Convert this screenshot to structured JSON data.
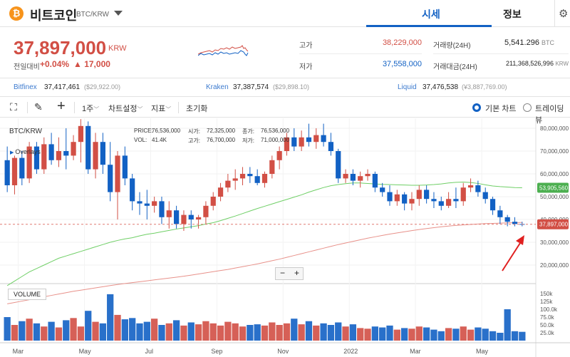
{
  "header": {
    "coin_symbol": "₿",
    "coin_name": "비트코인",
    "pair": "BTC/KRW",
    "tabs": [
      {
        "label": "시세",
        "active": true
      },
      {
        "label": "정보",
        "active": false
      }
    ],
    "settings_icon": "⚙"
  },
  "summary": {
    "price": "37,897,000",
    "unit": "KRW",
    "change_label": "전일대비",
    "change_pct": "+0.04%",
    "change_val": "▲ 17,000",
    "high_label": "고가",
    "high": "38,229,000",
    "low_label": "저가",
    "low": "37,558,000",
    "volume_label": "거래량(24H)",
    "volume": "5,541.296",
    "volume_unit": "BTC",
    "amount_label": "거래대금(24H)",
    "amount": "211,368,526,996",
    "amount_unit": "KRW"
  },
  "exchanges": [
    {
      "name": "Bitfinex",
      "price": "37,417,461",
      "usd": "($29,922.00)"
    },
    {
      "name": "Kraken",
      "price": "37,387,574",
      "usd": "($29,898.10)"
    },
    {
      "name": "Liquid",
      "price": "37,476,538",
      "usd": "(¥3,887,769.00)"
    }
  ],
  "toolbar": {
    "fullscreen_icon": "⛶",
    "draw_icon": "✎",
    "crosshair_icon": "+",
    "period": "1주",
    "chart_settings": "차트설정",
    "indicators": "지표",
    "reset": "초기화",
    "basic_chart": "기본 차트",
    "trading_view": "트레이딩뷰",
    "dropdown_icon": "﹀"
  },
  "chart": {
    "ticker": "BTC/KRW",
    "overlays": "Overlays",
    "info": {
      "price_label": "PRICE:",
      "price": "76,536,000",
      "vol_label": "VOL:",
      "vol": "41.4K",
      "open_label": "시가:",
      "open": "72,325,000",
      "high_label": "고가:",
      "high": "76,700,000",
      "close_label": "종가:",
      "close": "76,536,000",
      "low_label": "저가:",
      "low": "71,000,000"
    },
    "zoom_out": "−",
    "zoom_in": "+",
    "volume_label": "VOLUME",
    "ma_label": "53,905,560",
    "price_label": "37,897,000"
  },
  "chart_data": {
    "type": "candlestick",
    "price_axis": [
      "80,000,000",
      "70,000,000",
      "60,000,000",
      "50,000,000",
      "40,000,000",
      "30,000,000",
      "20,000,000"
    ],
    "price_ticks": [
      80000000,
      70000000,
      60000000,
      50000000,
      40000000,
      30000000,
      20000000
    ],
    "volume_axis": [
      "150k",
      "125k",
      "100.0k",
      "75.0k",
      "50.0k",
      "25.0k"
    ],
    "volume_ticks": [
      150000,
      125000,
      100000,
      75000,
      50000,
      25000
    ],
    "x_labels": [
      "Mar",
      "May",
      "Jul",
      "Sep",
      "Nov",
      "2022",
      "Mar",
      "May"
    ],
    "x_label_index": [
      2,
      11,
      20,
      29,
      38,
      47,
      56,
      65
    ],
    "candles": [
      [
        66,
        72,
        52,
        55
      ],
      [
        55,
        68,
        51,
        67
      ],
      [
        67,
        70,
        55,
        58
      ],
      [
        58,
        74,
        56,
        72
      ],
      [
        72,
        74,
        60,
        62
      ],
      [
        62,
        76,
        60,
        73
      ],
      [
        73,
        78,
        64,
        66
      ],
      [
        66,
        76,
        63,
        70
      ],
      [
        70,
        80,
        62,
        68
      ],
      [
        68,
        77,
        66,
        74
      ],
      [
        74,
        84,
        65,
        81
      ],
      [
        81,
        83,
        60,
        62
      ],
      [
        62,
        78,
        58,
        74
      ],
      [
        74,
        78,
        60,
        64
      ],
      [
        64,
        74,
        48,
        52
      ],
      [
        52,
        70,
        40,
        68
      ],
      [
        68,
        72,
        55,
        58
      ],
      [
        58,
        60,
        44,
        48
      ],
      [
        48,
        52,
        42,
        47
      ],
      [
        47,
        53,
        40,
        46
      ],
      [
        46,
        50,
        43,
        48
      ],
      [
        48,
        50,
        38,
        41
      ],
      [
        41,
        48,
        36,
        44
      ],
      [
        44,
        46,
        36,
        38
      ],
      [
        38,
        44,
        35,
        42
      ],
      [
        42,
        44,
        36,
        40
      ],
      [
        40,
        42,
        36,
        41
      ],
      [
        41,
        48,
        38,
        46
      ],
      [
        46,
        52,
        44,
        50
      ],
      [
        50,
        56,
        48,
        54
      ],
      [
        54,
        60,
        52,
        57
      ],
      [
        57,
        62,
        53,
        58
      ],
      [
        58,
        63,
        55,
        60
      ],
      [
        60,
        63,
        56,
        59
      ],
      [
        59,
        62,
        55,
        56
      ],
      [
        56,
        61,
        54,
        60
      ],
      [
        60,
        68,
        58,
        66
      ],
      [
        66,
        72,
        62,
        70
      ],
      [
        70,
        78,
        68,
        76
      ],
      [
        76,
        80,
        70,
        72
      ],
      [
        72,
        79,
        70,
        76
      ],
      [
        76,
        82,
        72,
        74
      ],
      [
        74,
        80,
        71,
        77
      ],
      [
        77,
        82,
        72,
        74
      ],
      [
        74,
        78,
        68,
        70
      ],
      [
        70,
        71,
        56,
        58
      ],
      [
        58,
        62,
        56,
        60
      ],
      [
        60,
        62,
        55,
        57
      ],
      [
        57,
        61,
        54,
        59
      ],
      [
        59,
        62,
        57,
        60
      ],
      [
        60,
        61,
        52,
        54
      ],
      [
        54,
        56,
        50,
        52
      ],
      [
        52,
        55,
        46,
        48
      ],
      [
        48,
        53,
        46,
        51
      ],
      [
        51,
        52,
        44,
        47
      ],
      [
        47,
        52,
        44,
        49
      ],
      [
        49,
        55,
        46,
        53
      ],
      [
        53,
        55,
        47,
        49
      ],
      [
        49,
        52,
        45,
        48
      ],
      [
        48,
        50,
        44,
        46
      ],
      [
        46,
        52,
        45,
        49
      ],
      [
        49,
        54,
        45,
        48
      ],
      [
        48,
        56,
        46,
        54
      ],
      [
        54,
        58,
        52,
        55
      ],
      [
        55,
        57,
        50,
        52
      ],
      [
        52,
        54,
        47,
        49
      ],
      [
        49,
        50,
        42,
        44
      ],
      [
        44,
        46,
        38,
        41
      ],
      [
        41,
        42,
        37,
        39
      ],
      [
        39,
        41,
        37,
        38
      ],
      [
        38,
        39,
        37,
        37.9
      ]
    ],
    "volumes": [
      75,
      50,
      62,
      70,
      55,
      45,
      60,
      42,
      65,
      72,
      45,
      95,
      60,
      55,
      148,
      82,
      68,
      72,
      55,
      60,
      70,
      50,
      55,
      65,
      48,
      58,
      52,
      62,
      55,
      48,
      60,
      55,
      45,
      50,
      52,
      48,
      58,
      50,
      55,
      70,
      52,
      62,
      48,
      55,
      50,
      58,
      45,
      52,
      40,
      38,
      45,
      42,
      48,
      35,
      40,
      38,
      45,
      42,
      35,
      30,
      40,
      38,
      45,
      35,
      42,
      38,
      30,
      25,
      100,
      30,
      28
    ],
    "ma_long": [
      11,
      13,
      15,
      17,
      18.5,
      20,
      21.5,
      23,
      24,
      25,
      26,
      27,
      28,
      29,
      30,
      30.8,
      31.5,
      32,
      32.8,
      33.5,
      34,
      34.6,
      35.2,
      35.8,
      36.3,
      36.8,
      37.3,
      38,
      38.6,
      39.5,
      40.5,
      41.5,
      42.6,
      43.7,
      44.8,
      45.8,
      46.8,
      47.8,
      48.8,
      49.8,
      50.8,
      52,
      53,
      54,
      54.8,
      55.3,
      55.7,
      56,
      56,
      55.8,
      55.6,
      55.4,
      55.3,
      55.2,
      55.1,
      55,
      55,
      55.1,
      55.3,
      55.6,
      56,
      56.3,
      56.4,
      56.2,
      55.8,
      55.2,
      54.7,
      54.4,
      54.2,
      54,
      53.9
    ],
    "ma_short": [
      3,
      3.6,
      4.2,
      4.8,
      5.5,
      6.1,
      6.7,
      7.3,
      7.9,
      8.5,
      9,
      9.5,
      10,
      10.5,
      11,
      11.5,
      11.9,
      12.3,
      12.7,
      13.1,
      13.5,
      13.9,
      14.3,
      14.7,
      15.1,
      15.6,
      16.1,
      16.6,
      17.1,
      17.6,
      18.1,
      18.7,
      19.3,
      19.9,
      20.5,
      21.2,
      21.9,
      22.6,
      23.4,
      24.2,
      25,
      25.8,
      26.6,
      27.4,
      28.2,
      29,
      29.7,
      30.4,
      31.1,
      31.8,
      32.4,
      33,
      33.6,
      34.1,
      34.6,
      35.1,
      35.6,
      36,
      36.4,
      36.8,
      37.1,
      37.4,
      37.6,
      37.8,
      38,
      38.2,
      38.3,
      38.4,
      38.5,
      38.6,
      38.7
    ]
  }
}
